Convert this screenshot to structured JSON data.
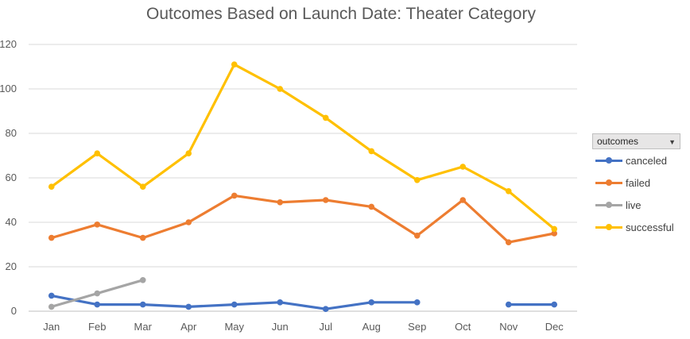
{
  "chart_data": {
    "type": "line",
    "title": "Outcomes Based on Launch Date: Theater Category",
    "categories": [
      "Jan",
      "Feb",
      "Mar",
      "Apr",
      "May",
      "Jun",
      "Jul",
      "Aug",
      "Sep",
      "Oct",
      "Nov",
      "Dec"
    ],
    "ylim": [
      0,
      120
    ],
    "yticks": [
      0,
      20,
      40,
      60,
      80,
      100,
      120
    ],
    "grid": true,
    "legend_title": "outcomes",
    "legend_position": "right",
    "series": [
      {
        "name": "canceled",
        "color": "#4472c4",
        "values": [
          7,
          3,
          3,
          2,
          3,
          4,
          1,
          4,
          4,
          null,
          3,
          3
        ]
      },
      {
        "name": "failed",
        "color": "#ed7d31",
        "values": [
          33,
          39,
          33,
          40,
          52,
          49,
          50,
          47,
          34,
          50,
          31,
          35
        ]
      },
      {
        "name": "live",
        "color": "#a5a5a5",
        "values": [
          2,
          8,
          14,
          null,
          null,
          null,
          null,
          null,
          null,
          null,
          null,
          null
        ]
      },
      {
        "name": "successful",
        "color": "#ffc000",
        "values": [
          56,
          71,
          56,
          71,
          111,
          100,
          87,
          72,
          59,
          65,
          54,
          37
        ]
      }
    ]
  }
}
